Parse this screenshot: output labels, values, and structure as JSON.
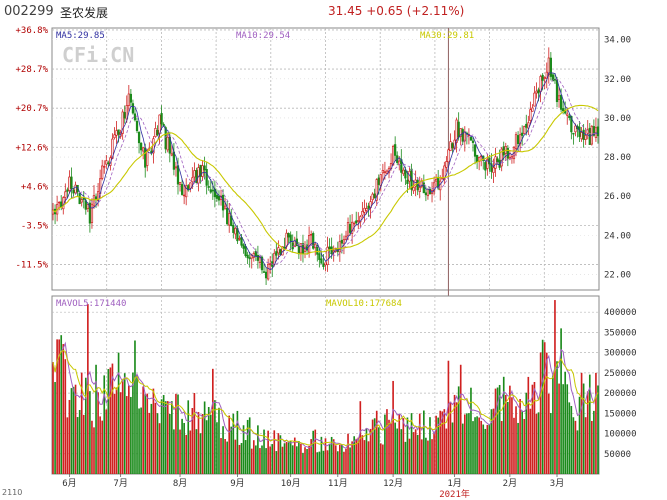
{
  "header": {
    "code": "002299",
    "name": "圣农发展",
    "price": "31.45",
    "change": "+0.65",
    "change_pct": "(+2.11%)"
  },
  "watermark": "CFi.CN",
  "footer_note": "2110",
  "colors": {
    "up": "#d02020",
    "down": "#1a8a1a",
    "ma5": "#3030a0",
    "ma10": "#a060c0",
    "ma30": "#c8c800",
    "grid": "#b8b8b8",
    "pct_text": "#b00000",
    "frame": "#888888"
  },
  "chart_data": [
    {
      "type": "candlestick",
      "legend": [
        {
          "label": "MA5:29.85",
          "color_key": "ma5"
        },
        {
          "label": "MA10:29.54",
          "color_key": "ma10"
        },
        {
          "label": "MA30:29.81",
          "color_key": "ma30"
        }
      ],
      "y_right_ticks": [
        22.0,
        24.0,
        26.0,
        28.0,
        30.0,
        32.0,
        34.0
      ],
      "y_right_labels": [
        "22.00",
        "24.00",
        "26.00",
        "28.00",
        "30.00",
        "32.00",
        "34.00"
      ],
      "y_left_labels": [
        {
          "label": "+36.8%",
          "value": 34.5
        },
        {
          "label": "+28.7%",
          "value": 32.5
        },
        {
          "label": "+20.7%",
          "value": 30.5
        },
        {
          "label": "+12.6%",
          "value": 28.5
        },
        {
          "label": "+4.6%",
          "value": 26.5
        },
        {
          "label": "-3.5%",
          "value": 24.5
        },
        {
          "label": "-11.5%",
          "value": 22.5
        }
      ],
      "ylim": [
        21.2,
        34.6
      ],
      "anchors": [
        [
          0,
          25.0
        ],
        [
          8,
          26.8
        ],
        [
          18,
          25.0
        ],
        [
          25,
          27.5
        ],
        [
          33,
          29.6
        ],
        [
          37,
          31.2
        ],
        [
          40,
          29.5
        ],
        [
          45,
          27.8
        ],
        [
          52,
          29.7
        ],
        [
          58,
          28.0
        ],
        [
          63,
          26.2
        ],
        [
          72,
          27.4
        ],
        [
          80,
          26.0
        ],
        [
          90,
          23.8
        ],
        [
          98,
          22.9
        ],
        [
          104,
          22.0
        ],
        [
          110,
          23.0
        ],
        [
          115,
          24.0
        ],
        [
          120,
          23.3
        ],
        [
          126,
          23.8
        ],
        [
          132,
          22.8
        ],
        [
          138,
          23.4
        ],
        [
          146,
          24.6
        ],
        [
          153,
          25.6
        ],
        [
          160,
          26.8
        ],
        [
          166,
          28.2
        ],
        [
          172,
          27.0
        ],
        [
          178,
          26.5
        ],
        [
          185,
          26.2
        ],
        [
          190,
          26.8
        ],
        [
          197,
          29.5
        ],
        [
          203,
          29.0
        ],
        [
          210,
          27.5
        ],
        [
          217,
          27.8
        ],
        [
          225,
          28.5
        ],
        [
          232,
          30.0
        ],
        [
          238,
          31.8
        ],
        [
          242,
          33.0
        ],
        [
          246,
          31.0
        ],
        [
          252,
          29.6
        ],
        [
          257,
          29.2
        ],
        [
          262,
          29.0
        ],
        [
          266,
          29.5
        ]
      ],
      "n_days": 267,
      "month_labels": [
        {
          "label": "6月",
          "day": 8
        },
        {
          "label": "7月",
          "day": 33
        },
        {
          "label": "8月",
          "day": 62
        },
        {
          "label": "9月",
          "day": 90
        },
        {
          "label": "10月",
          "day": 116
        },
        {
          "label": "11月",
          "day": 139
        },
        {
          "label": "12月",
          "day": 166
        },
        {
          "label": "1月",
          "day": 196
        },
        {
          "label": "2月",
          "day": 223
        },
        {
          "label": "3月",
          "day": 246
        }
      ],
      "year_label": {
        "label": "2021年",
        "day": 196
      },
      "year_divider_day": 193
    },
    {
      "type": "bar",
      "legend": [
        {
          "label": "MAVOL5:171440",
          "color_key": "ma10"
        },
        {
          "label": "MAVOL10:177684",
          "color_key": "ma30"
        }
      ],
      "y_right_ticks": [
        50000,
        100000,
        150000,
        200000,
        250000,
        300000,
        350000,
        400000
      ],
      "y_right_labels": [
        "50000",
        "100000",
        "150000",
        "200000",
        "250000",
        "300000",
        "350000",
        "400000"
      ],
      "ylim": [
        0,
        440000
      ],
      "vol_anchors": [
        [
          0,
          380000
        ],
        [
          5,
          250000
        ],
        [
          12,
          200000
        ],
        [
          20,
          200000
        ],
        [
          30,
          260000
        ],
        [
          36,
          240000
        ],
        [
          45,
          200000
        ],
        [
          55,
          180000
        ],
        [
          65,
          160000
        ],
        [
          75,
          150000
        ],
        [
          85,
          130000
        ],
        [
          95,
          110000
        ],
        [
          105,
          90000
        ],
        [
          115,
          80000
        ],
        [
          125,
          85000
        ],
        [
          135,
          90000
        ],
        [
          145,
          100000
        ],
        [
          155,
          120000
        ],
        [
          165,
          140000
        ],
        [
          175,
          140000
        ],
        [
          185,
          120000
        ],
        [
          193,
          150000
        ],
        [
          200,
          180000
        ],
        [
          210,
          170000
        ],
        [
          220,
          200000
        ],
        [
          230,
          230000
        ],
        [
          240,
          260000
        ],
        [
          248,
          220000
        ],
        [
          256,
          180000
        ],
        [
          266,
          200000
        ]
      ],
      "spikes": [
        [
          17,
          420000
        ],
        [
          21,
          270000
        ],
        [
          32,
          300000
        ],
        [
          40,
          330000
        ],
        [
          58,
          180000
        ],
        [
          78,
          260000
        ],
        [
          150,
          180000
        ],
        [
          166,
          230000
        ],
        [
          193,
          280000
        ],
        [
          199,
          270000
        ],
        [
          232,
          240000
        ],
        [
          241,
          300000
        ],
        [
          245,
          430000
        ],
        [
          248,
          360000
        ],
        [
          258,
          250000
        ],
        [
          265,
          250000
        ]
      ]
    }
  ]
}
